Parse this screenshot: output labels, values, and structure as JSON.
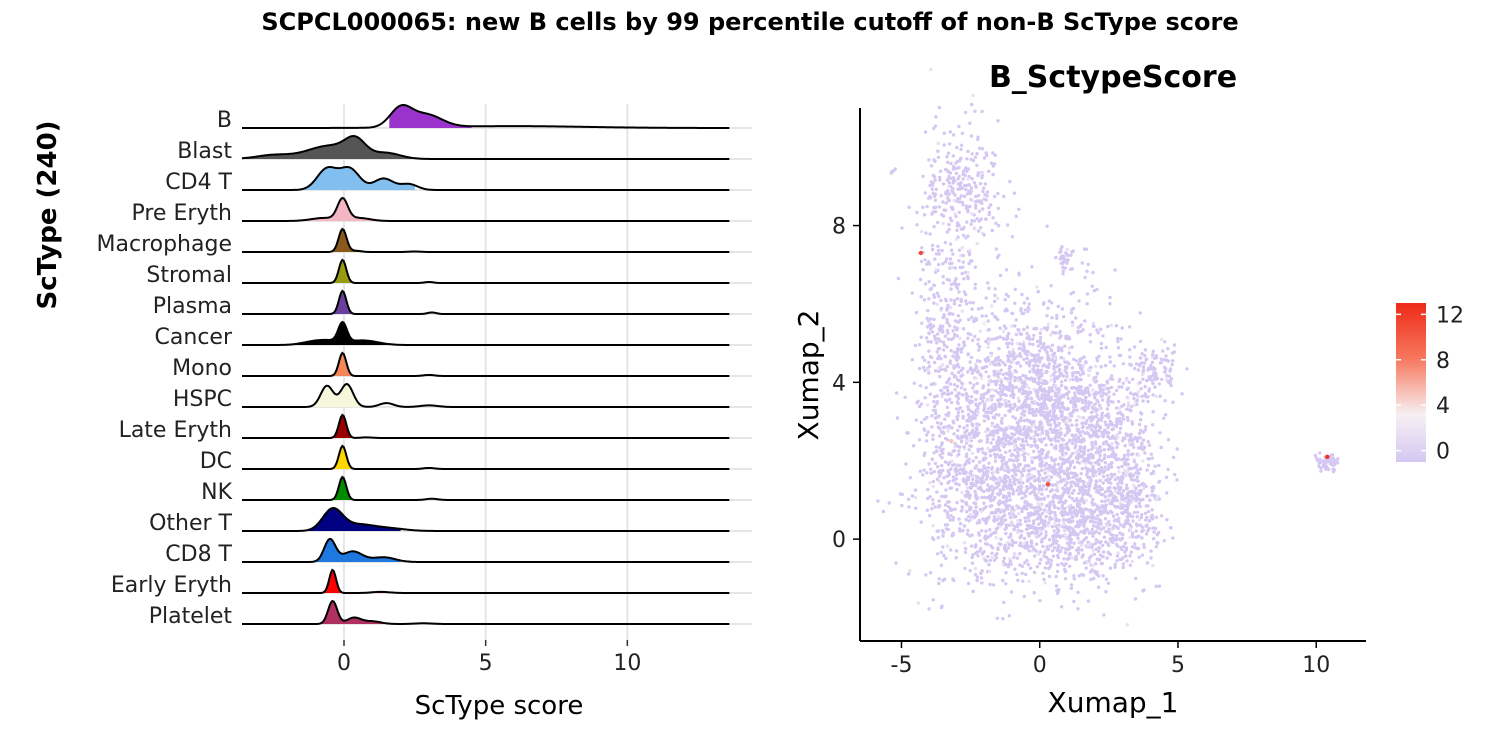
{
  "figure": {
    "title": "SCPCL000065: new B cells by 99 percentile cutoff of non-B ScType score"
  },
  "chart_data": [
    {
      "type": "ridgeline",
      "xlabel": "ScType score",
      "ylabel": "ScType (240)",
      "xlim": [
        -3.6,
        14.4
      ],
      "xticks": [
        0,
        5,
        10
      ],
      "grid": true,
      "legend": "none",
      "ridges": [
        {
          "name": "B",
          "color": "#9933cc",
          "fill_from": 1.6,
          "fill_to": 4.5,
          "peaks": [
            [
              2.0,
              0.38,
              0.3
            ],
            [
              2.9,
              0.55,
              0.2
            ],
            [
              6.0,
              2.5,
              0.03
            ]
          ]
        },
        {
          "name": "Blast",
          "color": "#555555",
          "fill_from": -3.5,
          "fill_to": 2.5,
          "peaks": [
            [
              -0.5,
              0.8,
              0.28
            ],
            [
              0.4,
              0.35,
              0.32
            ],
            [
              -2.5,
              0.6,
              0.08
            ],
            [
              1.5,
              0.5,
              0.12
            ]
          ]
        },
        {
          "name": "CD4 T",
          "color": "#80bff0",
          "fill_from": -1.8,
          "fill_to": 2.5,
          "peaks": [
            [
              -0.6,
              0.35,
              0.55
            ],
            [
              0.2,
              0.35,
              0.55
            ],
            [
              1.4,
              0.35,
              0.3
            ],
            [
              2.3,
              0.3,
              0.15
            ]
          ]
        },
        {
          "name": "Pre Eryth",
          "color": "#f4b6c2",
          "fill_from": -1.8,
          "fill_to": 1.8,
          "peaks": [
            [
              -0.05,
              0.18,
              1.5
            ],
            [
              -0.7,
              0.45,
              0.22
            ],
            [
              0.5,
              0.4,
              0.22
            ]
          ]
        },
        {
          "name": "Macrophage",
          "color": "#8b5a1a",
          "fill_from": -0.6,
          "fill_to": 0.6,
          "peaks": [
            [
              -0.05,
              0.14,
              1.8
            ],
            [
              0.4,
              0.2,
              0.1
            ],
            [
              2.5,
              0.2,
              0.04
            ]
          ]
        },
        {
          "name": "Stromal",
          "color": "#9a9a10",
          "fill_from": -0.6,
          "fill_to": 0.6,
          "peaks": [
            [
              -0.05,
              0.13,
              1.8
            ],
            [
              3.0,
              0.15,
              0.08
            ]
          ]
        },
        {
          "name": "Plasma",
          "color": "#6b3fa0",
          "fill_from": -0.6,
          "fill_to": 0.6,
          "peaks": [
            [
              -0.05,
              0.13,
              1.8
            ],
            [
              3.1,
              0.15,
              0.12
            ]
          ]
        },
        {
          "name": "Cancer",
          "color": "#000000",
          "fill_from": -2.0,
          "fill_to": 2.5,
          "peaks": [
            [
              -0.05,
              0.15,
              1.3
            ],
            [
              -0.6,
              0.5,
              0.3
            ],
            [
              0.7,
              0.5,
              0.3
            ],
            [
              -1.2,
              0.4,
              0.1
            ]
          ]
        },
        {
          "name": "Mono",
          "color": "#f4875a",
          "fill_from": -0.7,
          "fill_to": 0.7,
          "peaks": [
            [
              -0.05,
              0.13,
              1.8
            ],
            [
              3.0,
              0.2,
              0.08
            ]
          ]
        },
        {
          "name": "HSPC",
          "color": "#f7f7dc",
          "fill_from": -1.3,
          "fill_to": 1.3,
          "peaks": [
            [
              -0.6,
              0.22,
              0.65
            ],
            [
              0.1,
              0.22,
              0.7
            ],
            [
              1.5,
              0.25,
              0.12
            ],
            [
              3.0,
              0.3,
              0.05
            ]
          ]
        },
        {
          "name": "Late Eryth",
          "color": "#9b0000",
          "fill_from": -0.6,
          "fill_to": 0.6,
          "peaks": [
            [
              -0.05,
              0.13,
              1.8
            ],
            [
              0.8,
              0.2,
              0.05
            ]
          ]
        },
        {
          "name": "DC",
          "color": "#ffd700",
          "fill_from": -0.6,
          "fill_to": 0.6,
          "peaks": [
            [
              -0.05,
              0.13,
              1.8
            ],
            [
              3.0,
              0.2,
              0.08
            ]
          ]
        },
        {
          "name": "NK",
          "color": "#008b00",
          "fill_from": -0.6,
          "fill_to": 0.6,
          "peaks": [
            [
              -0.05,
              0.13,
              1.8
            ],
            [
              3.1,
              0.2,
              0.1
            ]
          ]
        },
        {
          "name": "Other T",
          "color": "#000080",
          "fill_from": -1.5,
          "fill_to": 2.0,
          "peaks": [
            [
              -0.4,
              0.35,
              0.75
            ],
            [
              0.5,
              0.5,
              0.2
            ],
            [
              1.5,
              0.6,
              0.1
            ]
          ]
        },
        {
          "name": "CD8 T",
          "color": "#1e78e0",
          "fill_from": -1.2,
          "fill_to": 2.0,
          "peaks": [
            [
              -0.5,
              0.2,
              0.95
            ],
            [
              0.3,
              0.35,
              0.45
            ],
            [
              1.4,
              0.4,
              0.2
            ]
          ]
        },
        {
          "name": "Early Eryth",
          "color": "#ff0000",
          "fill_from": -0.7,
          "fill_to": 1.6,
          "peaks": [
            [
              -0.4,
              0.12,
              1.6
            ],
            [
              1.3,
              0.3,
              0.08
            ]
          ]
        },
        {
          "name": "Platelet",
          "color": "#b03060",
          "fill_from": -0.9,
          "fill_to": 1.5,
          "peaks": [
            [
              -0.4,
              0.16,
              1.3
            ],
            [
              0.35,
              0.25,
              0.35
            ],
            [
              1.0,
              0.3,
              0.15
            ],
            [
              2.8,
              0.3,
              0.04
            ]
          ]
        }
      ]
    },
    {
      "type": "scatter",
      "title": "B_SctypeScore",
      "xlabel": "Xumap_1",
      "ylabel": "Xumap_2",
      "xlim": [
        -6.5,
        11.8
      ],
      "ylim": [
        -2.6,
        11.0
      ],
      "xticks": [
        -5,
        0,
        5,
        10
      ],
      "yticks": [
        0,
        4,
        8
      ],
      "grid": false,
      "point_color": "#d4c8f2",
      "colorbar": {
        "range": [
          -1.0,
          13.0
        ],
        "ticks": [
          0,
          4,
          8,
          12
        ],
        "colors": [
          "#d4c8f2",
          "#f7f0f2",
          "#f7785e",
          "#ee2a18"
        ],
        "stops": [
          0.0,
          0.3,
          0.65,
          1.0
        ],
        "legend": "right"
      },
      "clusters": [
        {
          "cx": -2.7,
          "cy": 9.0,
          "sx": 0.7,
          "sy": 0.8,
          "n": 260
        },
        {
          "cx": -3.4,
          "cy": 5.0,
          "sx": 0.55,
          "sy": 2.0,
          "n": 380
        },
        {
          "cx": -1.0,
          "cy": 3.5,
          "sx": 1.5,
          "sy": 1.4,
          "n": 900
        },
        {
          "cx": 0.5,
          "cy": 3.3,
          "sx": 1.5,
          "sy": 1.3,
          "n": 850
        },
        {
          "cx": 2.3,
          "cy": 2.3,
          "sx": 0.9,
          "sy": 1.0,
          "n": 420
        },
        {
          "cx": -1.8,
          "cy": 0.9,
          "sx": 1.3,
          "sy": 1.0,
          "n": 650
        },
        {
          "cx": 1.2,
          "cy": 0.4,
          "sx": 1.3,
          "sy": 0.8,
          "n": 650
        },
        {
          "cx": 3.2,
          "cy": 0.8,
          "sx": 0.6,
          "sy": 0.7,
          "n": 260
        },
        {
          "cx": 4.1,
          "cy": 4.2,
          "sx": 0.45,
          "sy": 0.35,
          "n": 110
        },
        {
          "cx": 0.9,
          "cy": 7.2,
          "sx": 0.15,
          "sy": 0.18,
          "n": 30
        },
        {
          "cx": -5.3,
          "cy": 9.4,
          "sx": 0.05,
          "sy": 0.05,
          "n": 4
        },
        {
          "cx": 10.4,
          "cy": 1.95,
          "sx": 0.22,
          "sy": 0.1,
          "n": 60
        }
      ],
      "highlights": [
        {
          "x": -4.3,
          "y": 7.3,
          "v": 11.0
        },
        {
          "x": 10.4,
          "y": 2.1,
          "v": 12.5
        },
        {
          "x": 0.3,
          "y": 1.4,
          "v": 10.5
        },
        {
          "x": -3.2,
          "y": 2.5,
          "v": 5.0
        },
        {
          "x": 1.0,
          "y": 3.0,
          "v": 3.5
        },
        {
          "x": -2.0,
          "y": 5.5,
          "v": 3.0
        }
      ]
    }
  ]
}
